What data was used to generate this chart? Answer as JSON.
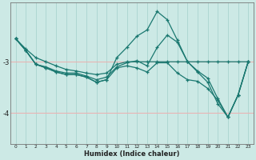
{
  "xlabel": "Humidex (Indice chaleur)",
  "bg_color": "#cce9e5",
  "line_color": "#1a7870",
  "grid_v_color": "#aad4cf",
  "grid_h_color": "#e8b4b4",
  "xlim": [
    -0.5,
    23.5
  ],
  "ylim": [
    -4.6,
    -1.85
  ],
  "yticks": [
    -4,
    -3
  ],
  "ytick_labels": [
    "-4",
    "-3"
  ],
  "xticks": [
    0,
    1,
    2,
    3,
    4,
    5,
    6,
    7,
    8,
    9,
    10,
    11,
    12,
    13,
    14,
    15,
    16,
    17,
    18,
    19,
    20,
    21,
    22,
    23
  ],
  "hlines": [
    -3.0,
    -4.0
  ],
  "lines": [
    {
      "x": [
        0,
        1,
        2,
        3,
        4,
        5,
        6,
        7,
        8,
        9,
        10,
        11,
        12,
        13,
        14,
        15,
        16,
        17,
        18,
        19,
        20,
        21,
        22,
        23
      ],
      "y": [
        -2.55,
        -2.75,
        -2.92,
        -3.0,
        -3.08,
        -3.15,
        -3.18,
        -3.22,
        -3.25,
        -3.22,
        -3.05,
        -3.0,
        -3.0,
        -3.0,
        -3.0,
        -3.0,
        -3.0,
        -3.0,
        -3.0,
        -3.0,
        -3.0,
        -3.0,
        -3.0,
        -3.0
      ]
    },
    {
      "x": [
        0,
        1,
        2,
        3,
        4,
        5,
        6,
        7,
        8,
        9,
        10,
        11,
        12,
        13,
        14,
        15,
        16,
        17,
        18,
        19,
        20,
        21,
        22,
        23
      ],
      "y": [
        -2.55,
        -2.78,
        -3.05,
        -3.1,
        -3.18,
        -3.22,
        -3.22,
        -3.28,
        -3.35,
        -3.3,
        -3.1,
        -3.02,
        -2.98,
        -3.08,
        -2.72,
        -2.48,
        -2.62,
        -3.0,
        -3.18,
        -3.32,
        -3.72,
        -4.08,
        -3.65,
        -3.0
      ]
    },
    {
      "x": [
        0,
        1,
        2,
        3,
        4,
        5,
        6,
        7,
        8,
        9,
        10,
        11,
        12,
        13,
        14,
        15,
        16,
        17,
        18,
        19,
        20,
        21,
        22,
        23
      ],
      "y": [
        -2.55,
        -2.78,
        -3.05,
        -3.12,
        -3.2,
        -3.25,
        -3.25,
        -3.3,
        -3.4,
        -3.35,
        -2.92,
        -2.72,
        -2.5,
        -2.38,
        -2.02,
        -2.18,
        -2.58,
        -3.0,
        -3.2,
        -3.4,
        -3.82,
        -4.08,
        -3.65,
        -3.0
      ]
    },
    {
      "x": [
        0,
        1,
        2,
        3,
        4,
        5,
        6,
        7,
        8,
        9,
        10,
        11,
        12,
        13,
        14,
        15,
        16,
        17,
        18,
        19,
        20,
        21,
        22,
        23
      ],
      "y": [
        -2.55,
        -2.78,
        -3.05,
        -3.12,
        -3.2,
        -3.25,
        -3.25,
        -3.3,
        -3.4,
        -3.35,
        -3.12,
        -3.08,
        -3.12,
        -3.2,
        -3.02,
        -3.02,
        -3.22,
        -3.35,
        -3.38,
        -3.52,
        -3.75,
        -4.08,
        -3.65,
        -3.0
      ]
    }
  ]
}
